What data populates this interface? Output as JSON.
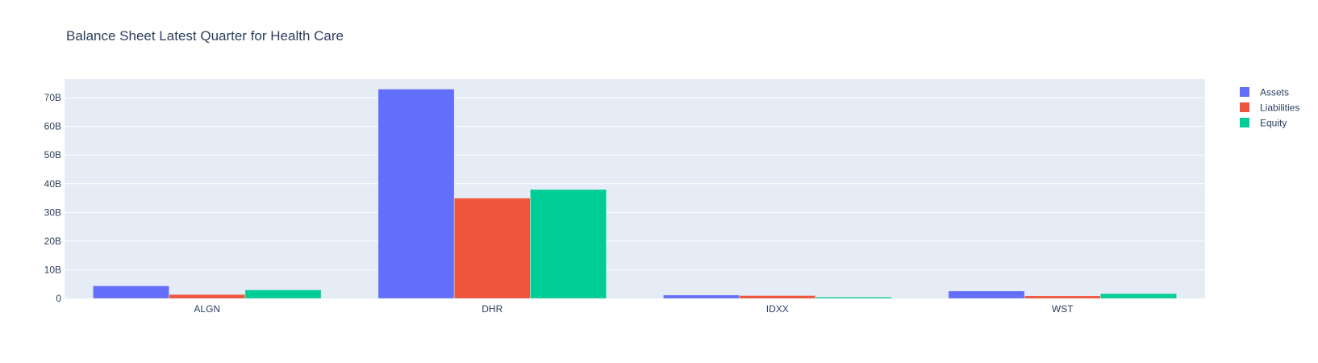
{
  "chart_data": {
    "type": "bar",
    "title": "Balance Sheet Latest Quarter for Health Care",
    "xlabel": "",
    "ylabel": "",
    "categories": [
      "ALGN",
      "DHR",
      "IDXX",
      "WST"
    ],
    "series": [
      {
        "name": "Assets",
        "color": "#636efa",
        "values": [
          4.4,
          73.0,
          1.2,
          2.6
        ]
      },
      {
        "name": "Liabilities",
        "color": "#ef553b",
        "values": [
          1.4,
          35.0,
          1.0,
          0.9
        ]
      },
      {
        "name": "Equity",
        "color": "#00cc96",
        "values": [
          3.0,
          38.0,
          0.5,
          1.7
        ]
      }
    ],
    "value_unit": "B",
    "ylim": [
      0,
      76.5
    ],
    "yticks": [
      0,
      10,
      20,
      30,
      40,
      50,
      60,
      70
    ],
    "ytick_labels": [
      "0",
      "10B",
      "20B",
      "30B",
      "40B",
      "50B",
      "60B",
      "70B"
    ],
    "grid": true,
    "legend_position": "top-right",
    "colors": {
      "plot_background": "#e5ecf6",
      "gridline": "#ffffff",
      "text": "#2a3f5f"
    }
  }
}
